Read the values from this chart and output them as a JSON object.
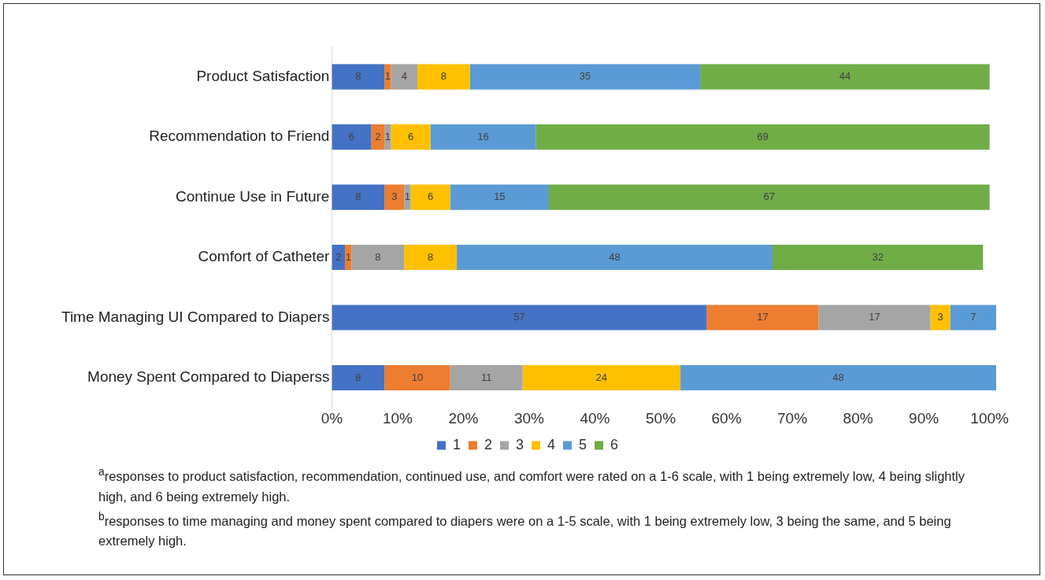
{
  "chart_data": {
    "type": "bar",
    "orientation": "horizontal",
    "stacked": true,
    "data_labels": true,
    "grid": false,
    "legend": "bottom",
    "categories": [
      "Product Satisfaction",
      "Recommendation to Friend",
      "Continue Use in Future",
      "Comfort of Catheter",
      "Time Managing UI Compared to Diapers",
      "Money Spent Compared to Diaperss"
    ],
    "series": [
      {
        "name": "1",
        "color": "#4472c4",
        "values": [
          8,
          6,
          8,
          2,
          57,
          8
        ]
      },
      {
        "name": "2",
        "color": "#ed7d31",
        "values": [
          1,
          2,
          3,
          1,
          17,
          10
        ]
      },
      {
        "name": "3",
        "color": "#a5a5a5",
        "values": [
          4,
          1,
          1,
          8,
          17,
          11
        ]
      },
      {
        "name": "4",
        "color": "#ffc000",
        "values": [
          8,
          6,
          6,
          8,
          3,
          24
        ]
      },
      {
        "name": "5",
        "color": "#5b9bd5",
        "values": [
          35,
          16,
          15,
          48,
          7,
          48
        ]
      },
      {
        "name": "6",
        "color": "#70ad47",
        "values": [
          44,
          69,
          67,
          32,
          null,
          null
        ]
      }
    ],
    "xlim": [
      0,
      101
    ],
    "xticks": [
      {
        "value": 0,
        "label": "0%"
      },
      {
        "value": 10,
        "label": "10%"
      },
      {
        "value": 20,
        "label": "20%"
      },
      {
        "value": 30,
        "label": "30%"
      },
      {
        "value": 40,
        "label": "40%"
      },
      {
        "value": 50,
        "label": "50%"
      },
      {
        "value": 60,
        "label": "60%"
      },
      {
        "value": 70,
        "label": "70%"
      },
      {
        "value": 80,
        "label": "80%"
      },
      {
        "value": 90,
        "label": "90%"
      },
      {
        "value": 100,
        "label": "100%"
      }
    ],
    "annotations": [
      "$^{a}$responses to product satisfaction, recommendation, continued use, and comfort were rated on a 1-6 scale, with 1 being extremely low, 4 being slightly high, and 6 being extremely high.",
      "$^{b}$responses to time managing and money spent compared to diapers were on a 1-5 scale, with 1 being extremely low, 3 being the same, and 5 being extremely high."
    ]
  }
}
